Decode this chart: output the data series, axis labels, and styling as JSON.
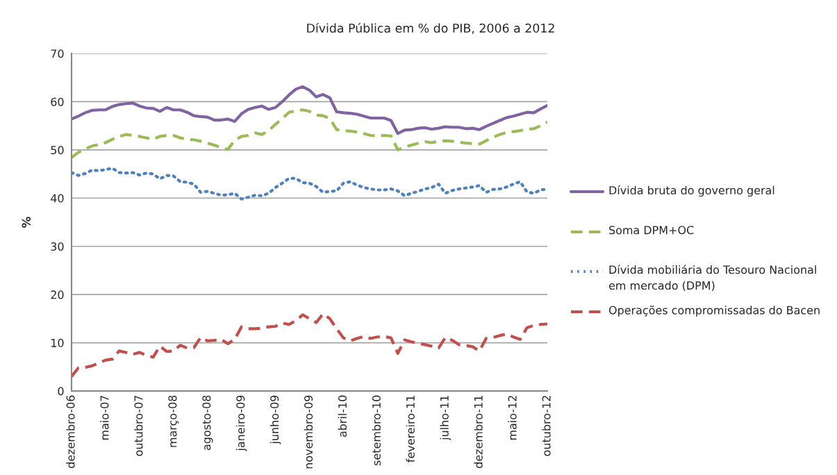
{
  "chart_data": {
    "type": "line",
    "title": "Dívida Pública em % do PIB, 2006 a 2012",
    "ylabel": "%",
    "categories": [
      "dezembro-06",
      null,
      null,
      null,
      null,
      "maio-07",
      null,
      null,
      null,
      null,
      "outubro-07",
      null,
      null,
      null,
      null,
      "março-08",
      null,
      null,
      null,
      null,
      "agosto-08",
      null,
      null,
      null,
      null,
      "janeiro-09",
      null,
      null,
      null,
      null,
      "junho-09",
      null,
      null,
      null,
      null,
      "novembro-09",
      null,
      null,
      null,
      null,
      "abril-10",
      null,
      null,
      null,
      null,
      "setembro-10",
      null,
      null,
      null,
      null,
      "fevereiro-11",
      null,
      null,
      null,
      null,
      "julho-11",
      null,
      null,
      null,
      null,
      "dezembro-11",
      null,
      null,
      null,
      null,
      "maio-12",
      null,
      null,
      null,
      null,
      "outubro-12"
    ],
    "series": [
      {
        "name": "Dívida bruta do governo geral",
        "color": "#8064a2",
        "line_style": "solid",
        "values": [
          56.4,
          57.0,
          57.7,
          58.2,
          58.3,
          58.3,
          59.0,
          59.4,
          59.6,
          59.7,
          59.1,
          58.7,
          58.6,
          58.0,
          58.8,
          58.3,
          58.3,
          57.8,
          57.1,
          56.9,
          56.8,
          56.2,
          56.2,
          56.4,
          55.9,
          57.5,
          58.4,
          58.8,
          59.1,
          58.4,
          58.8,
          60.0,
          61.4,
          62.6,
          63.1,
          62.4,
          61.0,
          61.5,
          60.8,
          57.9,
          57.7,
          57.6,
          57.4,
          57.0,
          56.6,
          56.6,
          56.6,
          56.1,
          53.4,
          54.1,
          54.2,
          54.5,
          54.6,
          54.3,
          54.5,
          54.8,
          54.7,
          54.7,
          54.4,
          54.5,
          54.2,
          54.9,
          55.5,
          56.1,
          56.7,
          57.0,
          57.4,
          57.8,
          57.7,
          58.5,
          59.2
        ]
      },
      {
        "name": "Soma DPM+OC",
        "color": "#9bbb59",
        "line_style": "dashed",
        "values": [
          48.4,
          49.5,
          50.2,
          50.8,
          51.1,
          51.5,
          52.2,
          52.8,
          53.2,
          53.0,
          52.8,
          52.5,
          52.2,
          52.8,
          53.0,
          53.0,
          52.5,
          52.2,
          52.1,
          51.8,
          51.4,
          51.0,
          50.5,
          50.1,
          52.0,
          52.8,
          53.0,
          53.5,
          53.2,
          54.0,
          55.3,
          56.5,
          57.8,
          58.1,
          58.3,
          58.0,
          57.2,
          57.1,
          56.5,
          54.2,
          54.0,
          53.9,
          53.7,
          53.4,
          53.0,
          52.9,
          53.0,
          52.9,
          50.0,
          50.6,
          51.0,
          51.4,
          51.7,
          51.5,
          51.8,
          51.9,
          51.8,
          51.6,
          51.4,
          51.3,
          51.2,
          51.9,
          52.6,
          53.2,
          53.6,
          53.8,
          54.0,
          54.3,
          54.4,
          55.0,
          55.8
        ]
      },
      {
        "name": "Dívida mobiliária do Tesouro Nacional em mercado (DPM)",
        "color": "#4f81bd",
        "line_style": "dotted",
        "values": [
          45.3,
          44.7,
          45.1,
          45.8,
          45.7,
          45.9,
          46.2,
          45.3,
          45.2,
          45.3,
          44.8,
          45.2,
          45.0,
          44.0,
          44.7,
          44.6,
          43.4,
          43.3,
          42.9,
          41.2,
          41.4,
          41.0,
          40.6,
          40.7,
          41.0,
          39.8,
          40.2,
          40.6,
          40.5,
          41.0,
          42.2,
          43.1,
          44.1,
          44.1,
          43.2,
          43.1,
          42.4,
          41.2,
          41.4,
          41.5,
          43.1,
          43.4,
          42.7,
          42.2,
          41.9,
          41.7,
          41.7,
          41.9,
          41.5,
          40.5,
          41.0,
          41.4,
          41.9,
          42.2,
          42.9,
          41.0,
          41.6,
          41.9,
          42.1,
          42.3,
          42.6,
          41.2,
          41.8,
          41.9,
          42.3,
          42.9,
          43.4,
          41.3,
          41.0,
          41.7,
          41.9
        ]
      },
      {
        "name": "Operações compromissadas do Bacen",
        "color": "#c0504d",
        "line_style": "dashed",
        "values": [
          3.0,
          4.8,
          4.9,
          5.2,
          5.8,
          6.4,
          6.6,
          8.3,
          8.0,
          7.6,
          8.0,
          7.4,
          7.0,
          9.3,
          8.2,
          8.3,
          9.5,
          8.9,
          9.0,
          11.1,
          10.4,
          10.5,
          10.7,
          9.8,
          10.7,
          13.3,
          12.9,
          12.9,
          13.0,
          13.3,
          13.4,
          14.1,
          13.8,
          14.6,
          15.8,
          15.0,
          14.2,
          16.0,
          15.0,
          12.9,
          11.0,
          10.4,
          10.9,
          11.3,
          10.9,
          11.2,
          11.3,
          11.0,
          7.8,
          10.6,
          10.2,
          9.9,
          9.6,
          9.3,
          8.9,
          11.1,
          10.5,
          9.6,
          9.4,
          9.2,
          8.3,
          10.9,
          11.1,
          11.5,
          11.8,
          11.2,
          10.7,
          13.1,
          13.6,
          13.8,
          13.9
        ]
      }
    ],
    "ylim": [
      0,
      70
    ],
    "yticks": [
      0,
      10,
      20,
      30,
      40,
      50,
      60,
      70
    ],
    "grid": "y",
    "legend": "right",
    "marker": "none"
  }
}
